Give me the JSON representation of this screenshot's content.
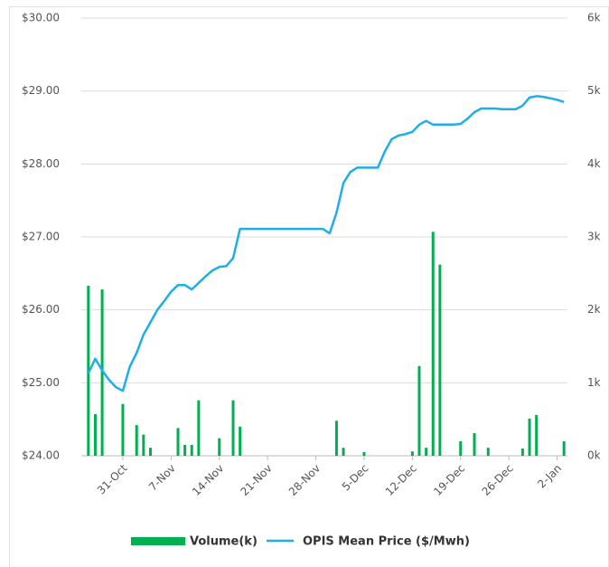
{
  "chart_data": {
    "type": "combo",
    "categories": [
      null,
      null,
      null,
      null,
      null,
      "31-Oct",
      null,
      null,
      null,
      null,
      null,
      null,
      "7-Nov",
      null,
      null,
      null,
      null,
      null,
      null,
      "14-Nov",
      null,
      null,
      null,
      null,
      null,
      null,
      "21-Nov",
      null,
      null,
      null,
      null,
      null,
      null,
      "28-Nov",
      null,
      null,
      null,
      null,
      null,
      null,
      "5-Dec",
      null,
      null,
      null,
      null,
      null,
      null,
      "12-Dec",
      null,
      null,
      null,
      null,
      null,
      null,
      "19-Dec",
      null,
      null,
      null,
      null,
      null,
      null,
      "26-Dec",
      null,
      null,
      null,
      null,
      null,
      null,
      "2-Jan",
      null
    ],
    "series": [
      {
        "name": "Volume(k)",
        "type": "bar",
        "color": "#00b050",
        "axis": "y2",
        "values": [
          2.33,
          0.57,
          2.28,
          null,
          null,
          0.71,
          null,
          0.42,
          0.29,
          0.11,
          null,
          null,
          null,
          0.38,
          0.15,
          0.15,
          0.76,
          null,
          null,
          0.24,
          null,
          0.76,
          0.4,
          null,
          null,
          null,
          null,
          null,
          null,
          null,
          null,
          null,
          null,
          null,
          null,
          null,
          0.48,
          0.11,
          null,
          null,
          0.05,
          null,
          null,
          null,
          null,
          null,
          null,
          0.06,
          1.23,
          0.11,
          3.07,
          2.62,
          null,
          null,
          0.2,
          null,
          0.31,
          null,
          0.11,
          null,
          null,
          null,
          null,
          0.1,
          0.51,
          0.56,
          null,
          null,
          null,
          0.2
        ]
      },
      {
        "name": "OPIS Mean Price ($/Mwh)",
        "type": "line",
        "color": "#1eaee8",
        "values": [
          25.13,
          25.33,
          25.17,
          25.04,
          24.94,
          24.89,
          25.22,
          25.41,
          25.66,
          25.83,
          26.0,
          26.12,
          26.25,
          26.34,
          26.34,
          26.28,
          26.37,
          26.46,
          26.54,
          26.59,
          26.6,
          26.71,
          27.11,
          27.11,
          27.11,
          27.11,
          27.11,
          27.11,
          27.11,
          27.11,
          27.11,
          27.11,
          27.11,
          27.11,
          27.11,
          27.05,
          27.33,
          27.74,
          27.89,
          27.95,
          27.95,
          27.95,
          27.95,
          28.17,
          28.34,
          28.39,
          28.41,
          28.44,
          28.54,
          28.59,
          28.54,
          28.54,
          28.54,
          28.54,
          28.55,
          28.62,
          28.71,
          28.76,
          28.76,
          28.76,
          28.75,
          28.75,
          28.75,
          28.8,
          28.91,
          28.93,
          28.92,
          28.9,
          28.88,
          28.85
        ]
      }
    ],
    "ylim": [
      24,
      30
    ],
    "yticks": [
      {
        "value": 24,
        "label": "$24.00"
      },
      {
        "value": 25,
        "label": "$25.00"
      },
      {
        "value": 26,
        "label": "$26.00"
      },
      {
        "value": 27,
        "label": "$27.00"
      },
      {
        "value": 28,
        "label": "$28.00"
      },
      {
        "value": 29,
        "label": "$29.00"
      },
      {
        "value": 30,
        "label": "$30.00"
      }
    ],
    "y2lim": [
      0,
      6
    ],
    "y2ticks": [
      {
        "value": 0,
        "label": "0k"
      },
      {
        "value": 1,
        "label": "1k"
      },
      {
        "value": 2,
        "label": "2k"
      },
      {
        "value": 3,
        "label": "3k"
      },
      {
        "value": 4,
        "label": "4k"
      },
      {
        "value": 5,
        "label": "5k"
      },
      {
        "value": 6,
        "label": "6k"
      }
    ],
    "grid": true,
    "legend": "bottom"
  }
}
